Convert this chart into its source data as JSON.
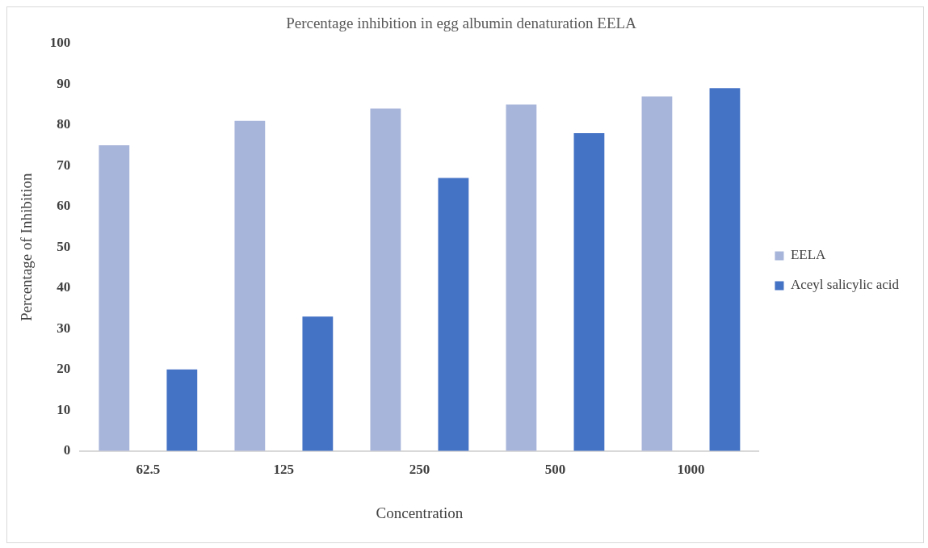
{
  "chart_data": {
    "type": "bar",
    "title": "Percentage inhibition in egg albumin denaturation EELA",
    "xlabel": "Concentration",
    "ylabel": "Percentage of Inhibition",
    "categories": [
      "62.5",
      "125",
      "250",
      "500",
      "1000"
    ],
    "series": [
      {
        "name": "EELA",
        "color": "#a8b5da",
        "values": [
          75,
          81,
          84,
          85,
          87
        ]
      },
      {
        "name": "Aceyl salicylic acid",
        "color": "#4472c4",
        "values": [
          20,
          33,
          67,
          78,
          89
        ]
      }
    ],
    "ylim": [
      0,
      100
    ],
    "yticks": [
      0,
      10,
      20,
      30,
      40,
      50,
      60,
      70,
      80,
      90,
      100
    ],
    "grid": false,
    "legend": "right"
  }
}
